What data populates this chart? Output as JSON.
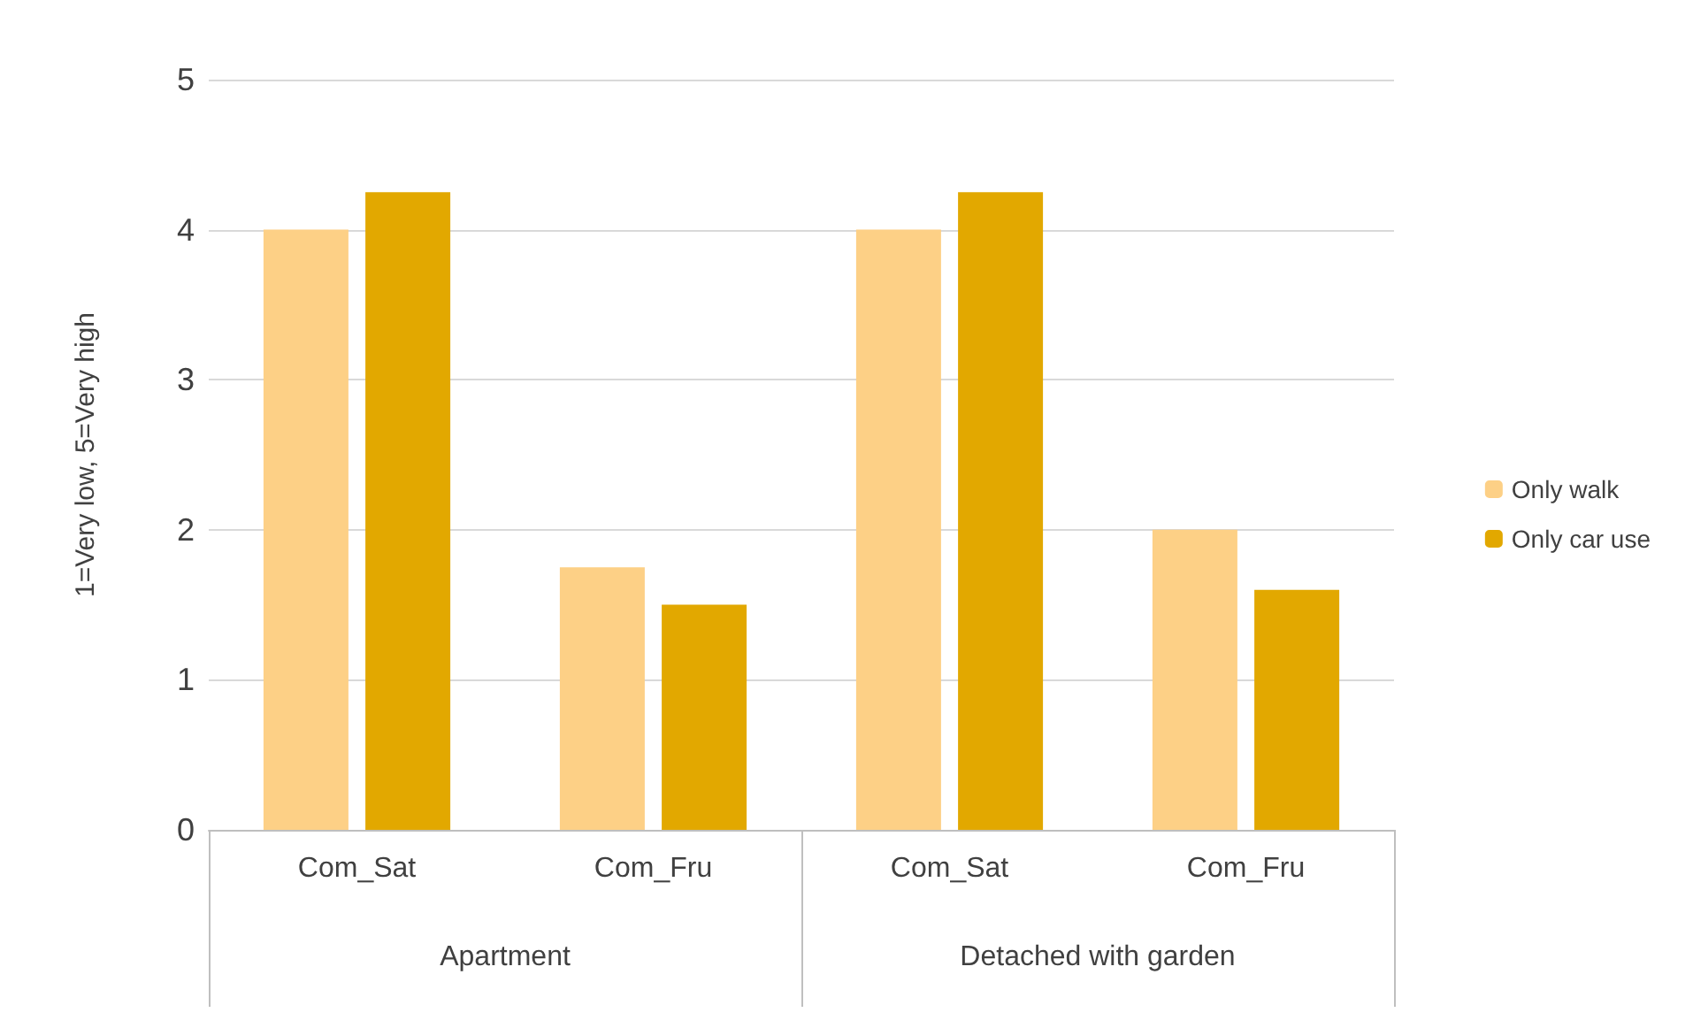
{
  "chart_data": {
    "type": "bar",
    "ylabel": "1=Very low, 5=Very high",
    "categories": [
      "Com_Sat",
      "Com_Fru",
      "Com_Sat",
      "Com_Fru"
    ],
    "annotations": [
      "Apartment",
      "Detached with garden"
    ],
    "series": [
      {
        "name": "Only walk",
        "color": "#fdd086",
        "values": [
          4,
          1.75,
          4,
          2
        ]
      },
      {
        "name": "Only car use",
        "color": "#e2a800",
        "values": [
          4.25,
          1.5,
          4.25,
          1.6
        ]
      }
    ],
    "ylim": [
      0,
      5
    ],
    "yticks": [
      0,
      1,
      2,
      3,
      4,
      5
    ],
    "grid": "y",
    "legend": "right"
  }
}
